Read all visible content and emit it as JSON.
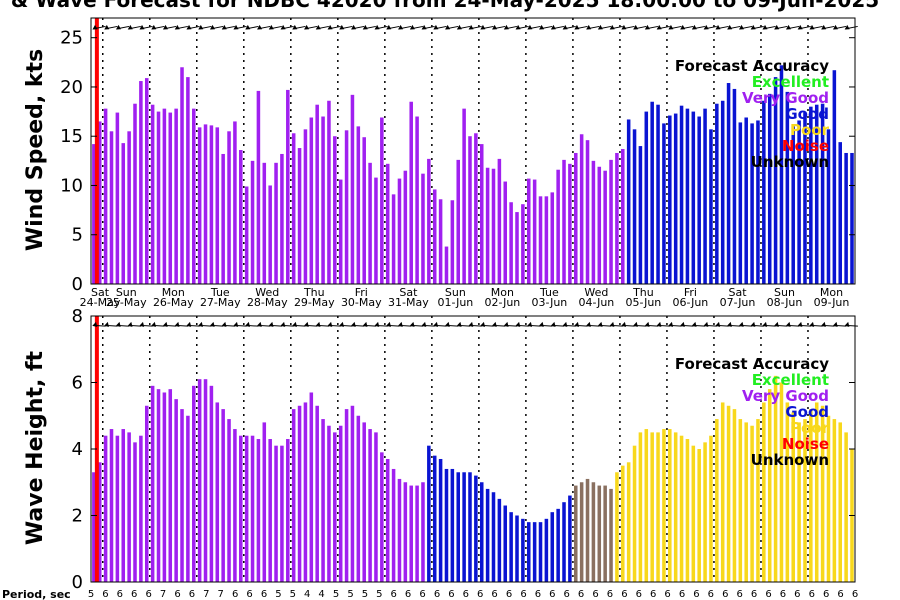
{
  "title": "& Wave Forecast for NDBC 42020 from 24-May-2025 18:00:00 to 09-Jun-2025",
  "period_label": "Period, sec",
  "colors": {
    "excellent": "#22ee22",
    "very_good": "#a020f0",
    "good": "#0a14d2",
    "poor": "#f8d81c",
    "noise": "#ff0000",
    "unknown": "#000000",
    "transition": "#8a7060"
  },
  "day_labels": [
    {
      "dow": "Sat",
      "date": "24-May"
    },
    {
      "dow": "Sun",
      "date": "25-May"
    },
    {
      "dow": "Mon",
      "date": "26-May"
    },
    {
      "dow": "Tue",
      "date": "27-May"
    },
    {
      "dow": "Wed",
      "date": "28-May"
    },
    {
      "dow": "Thu",
      "date": "29-May"
    },
    {
      "dow": "Fri",
      "date": "30-May"
    },
    {
      "dow": "Sat",
      "date": "31-May"
    },
    {
      "dow": "Sun",
      "date": "01-Jun"
    },
    {
      "dow": "Mon",
      "date": "02-Jun"
    },
    {
      "dow": "Tue",
      "date": "03-Jun"
    },
    {
      "dow": "Wed",
      "date": "04-Jun"
    },
    {
      "dow": "Thu",
      "date": "05-Jun"
    },
    {
      "dow": "Fri",
      "date": "06-Jun"
    },
    {
      "dow": "Sat",
      "date": "07-Jun"
    },
    {
      "dow": "Sun",
      "date": "08-Jun"
    },
    {
      "dow": "Mon",
      "date": "09-Jun"
    }
  ],
  "periods": [
    "5",
    "6",
    "6",
    "6",
    "6",
    "7",
    "6",
    "6",
    "7",
    "7",
    "6",
    "6",
    "6",
    "5",
    "5",
    "4",
    "4",
    "5",
    "5",
    "5",
    "5",
    "6",
    "6",
    "6",
    "6",
    "6",
    "6",
    "6",
    "6",
    "6",
    "6",
    "6",
    "6",
    "6",
    "6",
    "6",
    "6",
    "6",
    "6",
    "6",
    "6",
    "6",
    "6",
    "6",
    "6",
    "6",
    "6",
    "6",
    "6",
    "6",
    "6",
    "6",
    "6",
    "6"
  ],
  "chart_data": [
    {
      "type": "bar",
      "ylabel": "Wind Speed, kts",
      "ylim": [
        0,
        27
      ],
      "yticks": [
        0,
        5,
        10,
        15,
        20,
        25
      ],
      "x_unit": "forecast hour from 24-May-2025 18:00",
      "x_step_hours": 3,
      "legend": {
        "title": "Forecast Accuracy",
        "entries": [
          "Excellent",
          "Very Good",
          "Good",
          "Poor",
          "Noise",
          "Unknown"
        ],
        "placement": "top-right"
      },
      "values": [
        14.2,
        16.5,
        17.8,
        15.5,
        17.4,
        14.3,
        15.5,
        18.3,
        20.6,
        20.9,
        18.2,
        17.5,
        17.8,
        17.4,
        17.8,
        22.0,
        21.0,
        17.8,
        15.9,
        16.2,
        16.1,
        15.9,
        13.2,
        15.5,
        16.5,
        13.6,
        9.9,
        12.5,
        19.6,
        12.3,
        10.0,
        12.3,
        13.2,
        19.7,
        15.3,
        13.8,
        15.7,
        16.9,
        18.2,
        17.0,
        18.6,
        15.0,
        10.6,
        15.6,
        19.2,
        16.0,
        14.9,
        12.3,
        10.8,
        16.9,
        12.2,
        9.1,
        10.7,
        11.5,
        18.5,
        17.0,
        11.2,
        12.7,
        9.6,
        8.6,
        3.8,
        8.5,
        12.6,
        17.8,
        15.0,
        15.3,
        14.2,
        11.8,
        11.7,
        12.7,
        10.4,
        8.3,
        7.3,
        8.1,
        10.7,
        10.6,
        8.9,
        8.9,
        9.3,
        11.6,
        12.6,
        12.2,
        13.3,
        15.2,
        14.6,
        12.5,
        11.9,
        11.5,
        12.6,
        13.3,
        13.7,
        16.7,
        15.7,
        14.0,
        17.5,
        18.5,
        18.2,
        16.3,
        17.1,
        17.3,
        18.1,
        17.8,
        17.5,
        17.0,
        17.8,
        15.7,
        18.3,
        18.6,
        20.4,
        19.8,
        16.4,
        16.9,
        16.3,
        16.6,
        18.6,
        19.3,
        21.0,
        22.2,
        19.5,
        16.0,
        16.6,
        17.4,
        18.0,
        18.2,
        18.3,
        15.7,
        21.7,
        14.4,
        13.3,
        13.3
      ],
      "quality": [
        "V",
        "V",
        "V",
        "V",
        "V",
        "V",
        "V",
        "V",
        "V",
        "V",
        "V",
        "V",
        "V",
        "V",
        "V",
        "V",
        "V",
        "V",
        "V",
        "V",
        "V",
        "V",
        "V",
        "V",
        "V",
        "V",
        "V",
        "V",
        "V",
        "V",
        "V",
        "V",
        "V",
        "V",
        "V",
        "V",
        "V",
        "V",
        "V",
        "V",
        "V",
        "V",
        "V",
        "V",
        "V",
        "V",
        "V",
        "V",
        "V",
        "V",
        "V",
        "V",
        "V",
        "V",
        "V",
        "V",
        "V",
        "V",
        "V",
        "V",
        "V",
        "V",
        "V",
        "V",
        "V",
        "V",
        "V",
        "V",
        "V",
        "V",
        "V",
        "V",
        "V",
        "V",
        "V",
        "V",
        "V",
        "V",
        "V",
        "V",
        "V",
        "V",
        "V",
        "V",
        "V",
        "V",
        "V",
        "V",
        "V",
        "V",
        "V",
        "G",
        "G",
        "G",
        "G",
        "G",
        "G",
        "G",
        "G",
        "G",
        "G",
        "G",
        "G",
        "G",
        "G",
        "G",
        "G",
        "G",
        "G",
        "G",
        "G",
        "G",
        "G",
        "G",
        "G",
        "G",
        "G",
        "G",
        "G",
        "G",
        "G",
        "G",
        "G",
        "G",
        "G",
        "G",
        "G",
        "G",
        "G",
        "G"
      ],
      "noise_line_hour": 3
    },
    {
      "type": "bar",
      "ylabel": "Wave Height, ft",
      "ylim": [
        0,
        8
      ],
      "yticks": [
        0,
        2,
        4,
        6,
        8
      ],
      "x_unit": "forecast hour from 24-May-2025 18:00",
      "x_step_hours": 3,
      "legend": {
        "title": "Forecast Accuracy",
        "entries": [
          "Excellent",
          "Very Good",
          "Good",
          "Poor",
          "Noise",
          "Unknown"
        ],
        "placement": "top-right"
      },
      "values": [
        3.3,
        3.6,
        4.4,
        4.6,
        4.4,
        4.6,
        4.5,
        4.2,
        4.4,
        5.3,
        5.9,
        5.8,
        5.7,
        5.8,
        5.5,
        5.2,
        5.0,
        5.9,
        6.1,
        6.1,
        5.9,
        5.4,
        5.2,
        4.9,
        4.6,
        4.4,
        4.4,
        4.4,
        4.3,
        4.8,
        4.3,
        4.1,
        4.1,
        4.3,
        5.2,
        5.3,
        5.4,
        5.7,
        5.3,
        4.9,
        4.7,
        4.5,
        4.7,
        5.2,
        5.3,
        5.0,
        4.8,
        4.6,
        4.5,
        3.9,
        3.7,
        3.4,
        3.1,
        3.0,
        2.9,
        2.9,
        3.0,
        4.1,
        3.8,
        3.7,
        3.4,
        3.4,
        3.3,
        3.3,
        3.3,
        3.2,
        3.0,
        2.8,
        2.7,
        2.5,
        2.3,
        2.1,
        2.0,
        1.9,
        1.8,
        1.8,
        1.8,
        1.9,
        2.1,
        2.2,
        2.4,
        2.6,
        2.9,
        3.0,
        3.1,
        3.0,
        2.9,
        2.9,
        2.8,
        3.3,
        3.5,
        3.6,
        4.1,
        4.5,
        4.6,
        4.5,
        4.5,
        4.6,
        4.6,
        4.5,
        4.4,
        4.3,
        4.1,
        4.0,
        4.2,
        4.4,
        4.9,
        5.4,
        5.3,
        5.2,
        4.9,
        4.8,
        4.7,
        4.9,
        5.4,
        5.8,
        6.2,
        6.0,
        5.4,
        5.1,
        4.8,
        4.9,
        5.2,
        5.4,
        5.3,
        5.0,
        4.9,
        4.8,
        4.5,
        4.0
      ],
      "quality": [
        "V",
        "V",
        "V",
        "V",
        "V",
        "V",
        "V",
        "V",
        "V",
        "V",
        "V",
        "V",
        "V",
        "V",
        "V",
        "V",
        "V",
        "V",
        "V",
        "V",
        "V",
        "V",
        "V",
        "V",
        "V",
        "V",
        "V",
        "V",
        "V",
        "V",
        "V",
        "V",
        "V",
        "V",
        "V",
        "V",
        "V",
        "V",
        "V",
        "V",
        "V",
        "V",
        "V",
        "V",
        "V",
        "V",
        "V",
        "V",
        "V",
        "V",
        "V",
        "V",
        "V",
        "V",
        "V",
        "V",
        "V",
        "G",
        "G",
        "G",
        "G",
        "G",
        "G",
        "G",
        "G",
        "G",
        "G",
        "G",
        "G",
        "G",
        "G",
        "G",
        "G",
        "G",
        "G",
        "G",
        "G",
        "G",
        "G",
        "G",
        "G",
        "G",
        "T",
        "T",
        "T",
        "T",
        "T",
        "T",
        "T",
        "P",
        "P",
        "P",
        "P",
        "P",
        "P",
        "P",
        "P",
        "P",
        "P",
        "P",
        "P",
        "P",
        "P",
        "P",
        "P",
        "P",
        "P",
        "P",
        "P",
        "P",
        "P",
        "P",
        "P",
        "P",
        "P",
        "P",
        "P",
        "P",
        "P",
        "P",
        "P",
        "P",
        "P",
        "P",
        "P",
        "P",
        "P",
        "P",
        "P",
        "P"
      ],
      "noise_line_hour": 3
    }
  ]
}
